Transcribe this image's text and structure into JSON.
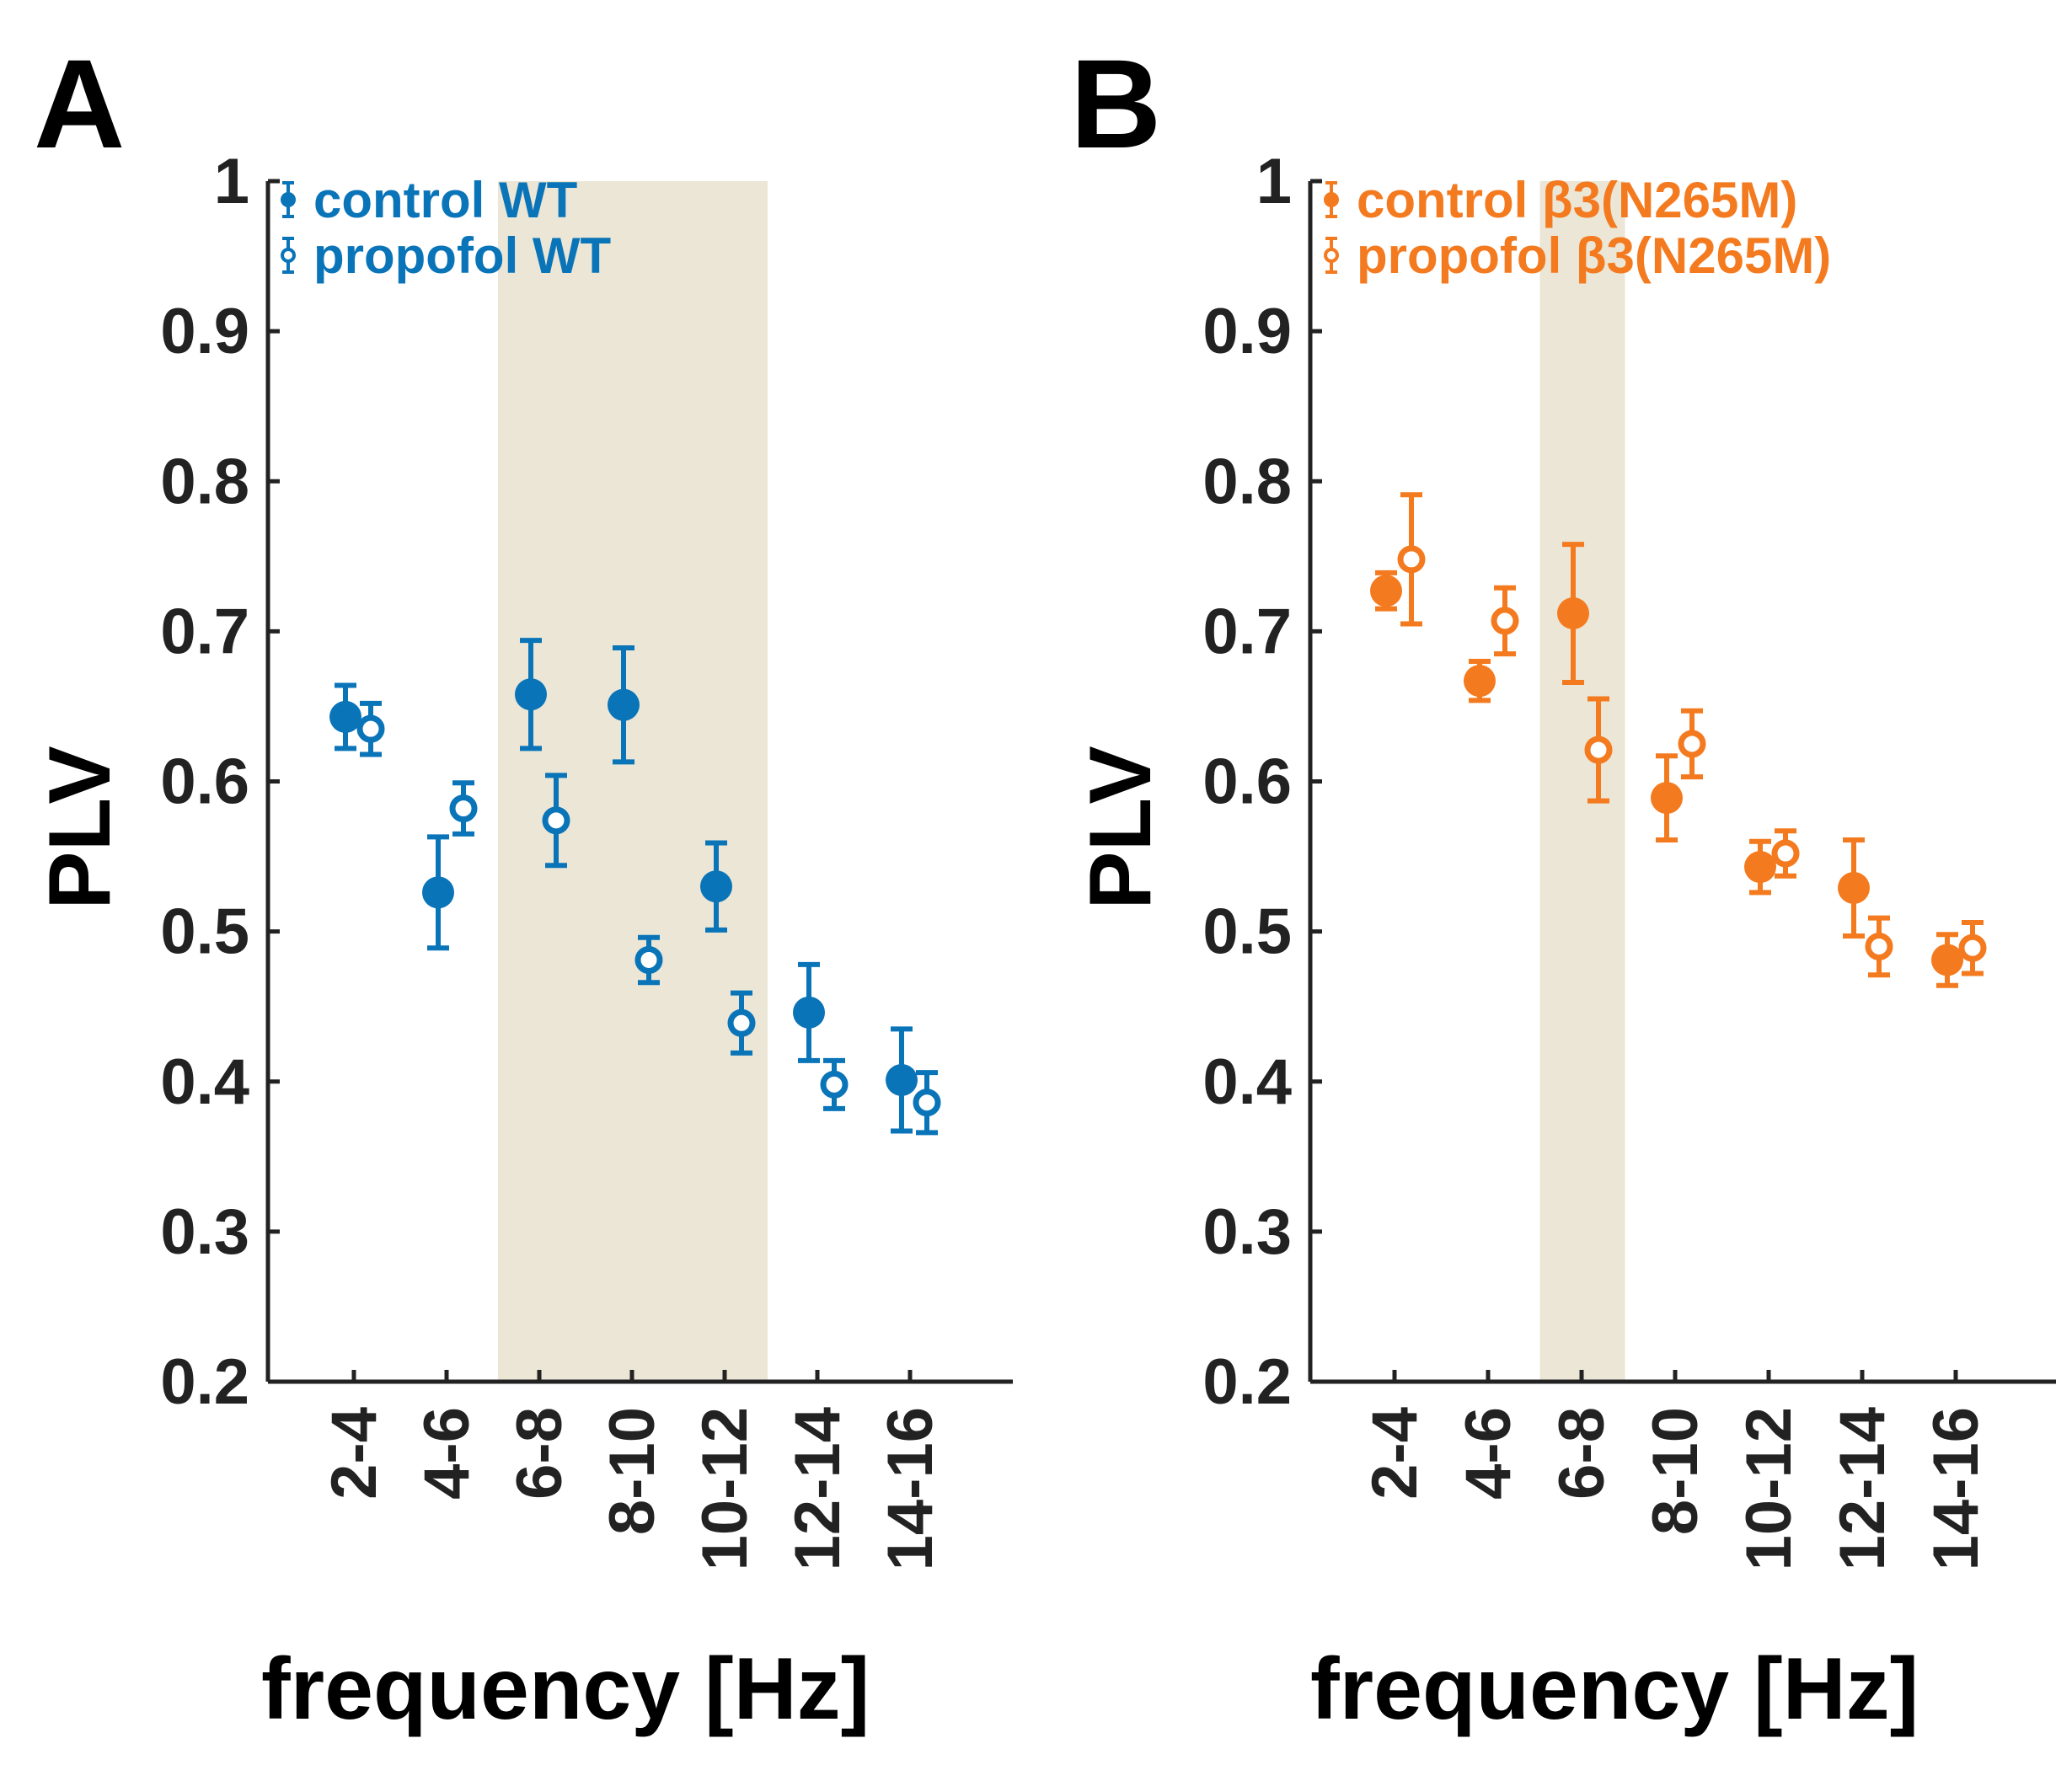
{
  "colors": {
    "wt": "#0a74b8",
    "mut": "#f47a1f",
    "band": "#ebe6d5",
    "axis": "#222222"
  },
  "chart_data": [
    {
      "panel": "A",
      "type": "scatter",
      "xlabel": "frequency [Hz]",
      "ylabel": "PLV",
      "ylim": [
        0.2,
        1.0
      ],
      "yticks": [
        "0.2",
        "0.3",
        "0.4",
        "0.5",
        "0.6",
        "0.7",
        "0.8",
        "0.9",
        "1"
      ],
      "categories": [
        "2-4",
        "4-6",
        "6-8",
        "8-10",
        "10-12",
        "12-14",
        "14-16"
      ],
      "highlight_band": [
        "6-8",
        "10-12"
      ],
      "series": [
        {
          "name": "control WT",
          "marker": "filled",
          "values": [
            0.643,
            0.526,
            0.658,
            0.651,
            0.53,
            0.446,
            0.401
          ],
          "err": [
            0.021,
            0.037,
            0.036,
            0.038,
            0.029,
            0.032,
            0.034
          ]
        },
        {
          "name": "propofol WT",
          "marker": "open",
          "values": [
            0.635,
            0.582,
            0.574,
            0.481,
            0.439,
            0.398,
            0.386
          ],
          "err": [
            0.017,
            0.017,
            0.03,
            0.015,
            0.02,
            0.016,
            0.02
          ]
        }
      ]
    },
    {
      "panel": "B",
      "type": "scatter",
      "xlabel": "frequency [Hz]",
      "ylabel": "PLV",
      "ylim": [
        0.2,
        1.0
      ],
      "yticks": [
        "0.2",
        "0.3",
        "0.4",
        "0.5",
        "0.6",
        "0.7",
        "0.8",
        "0.9",
        "1"
      ],
      "categories": [
        "2-4",
        "4-6",
        "6-8",
        "8-10",
        "10-12",
        "12-14",
        "14-16"
      ],
      "highlight_band": [
        "6-8",
        "6-8"
      ],
      "series": [
        {
          "name": "control β3(N265M)",
          "marker": "filled",
          "values": [
            0.727,
            0.667,
            0.712,
            0.589,
            0.543,
            0.529,
            0.481
          ],
          "err": [
            0.012,
            0.013,
            0.046,
            0.028,
            0.017,
            0.032,
            0.017
          ]
        },
        {
          "name": "propofol β3(N265M)",
          "marker": "open",
          "values": [
            0.748,
            0.707,
            0.621,
            0.625,
            0.552,
            0.49,
            0.489
          ],
          "err": [
            0.043,
            0.022,
            0.034,
            0.022,
            0.015,
            0.019,
            0.017
          ]
        }
      ]
    }
  ]
}
